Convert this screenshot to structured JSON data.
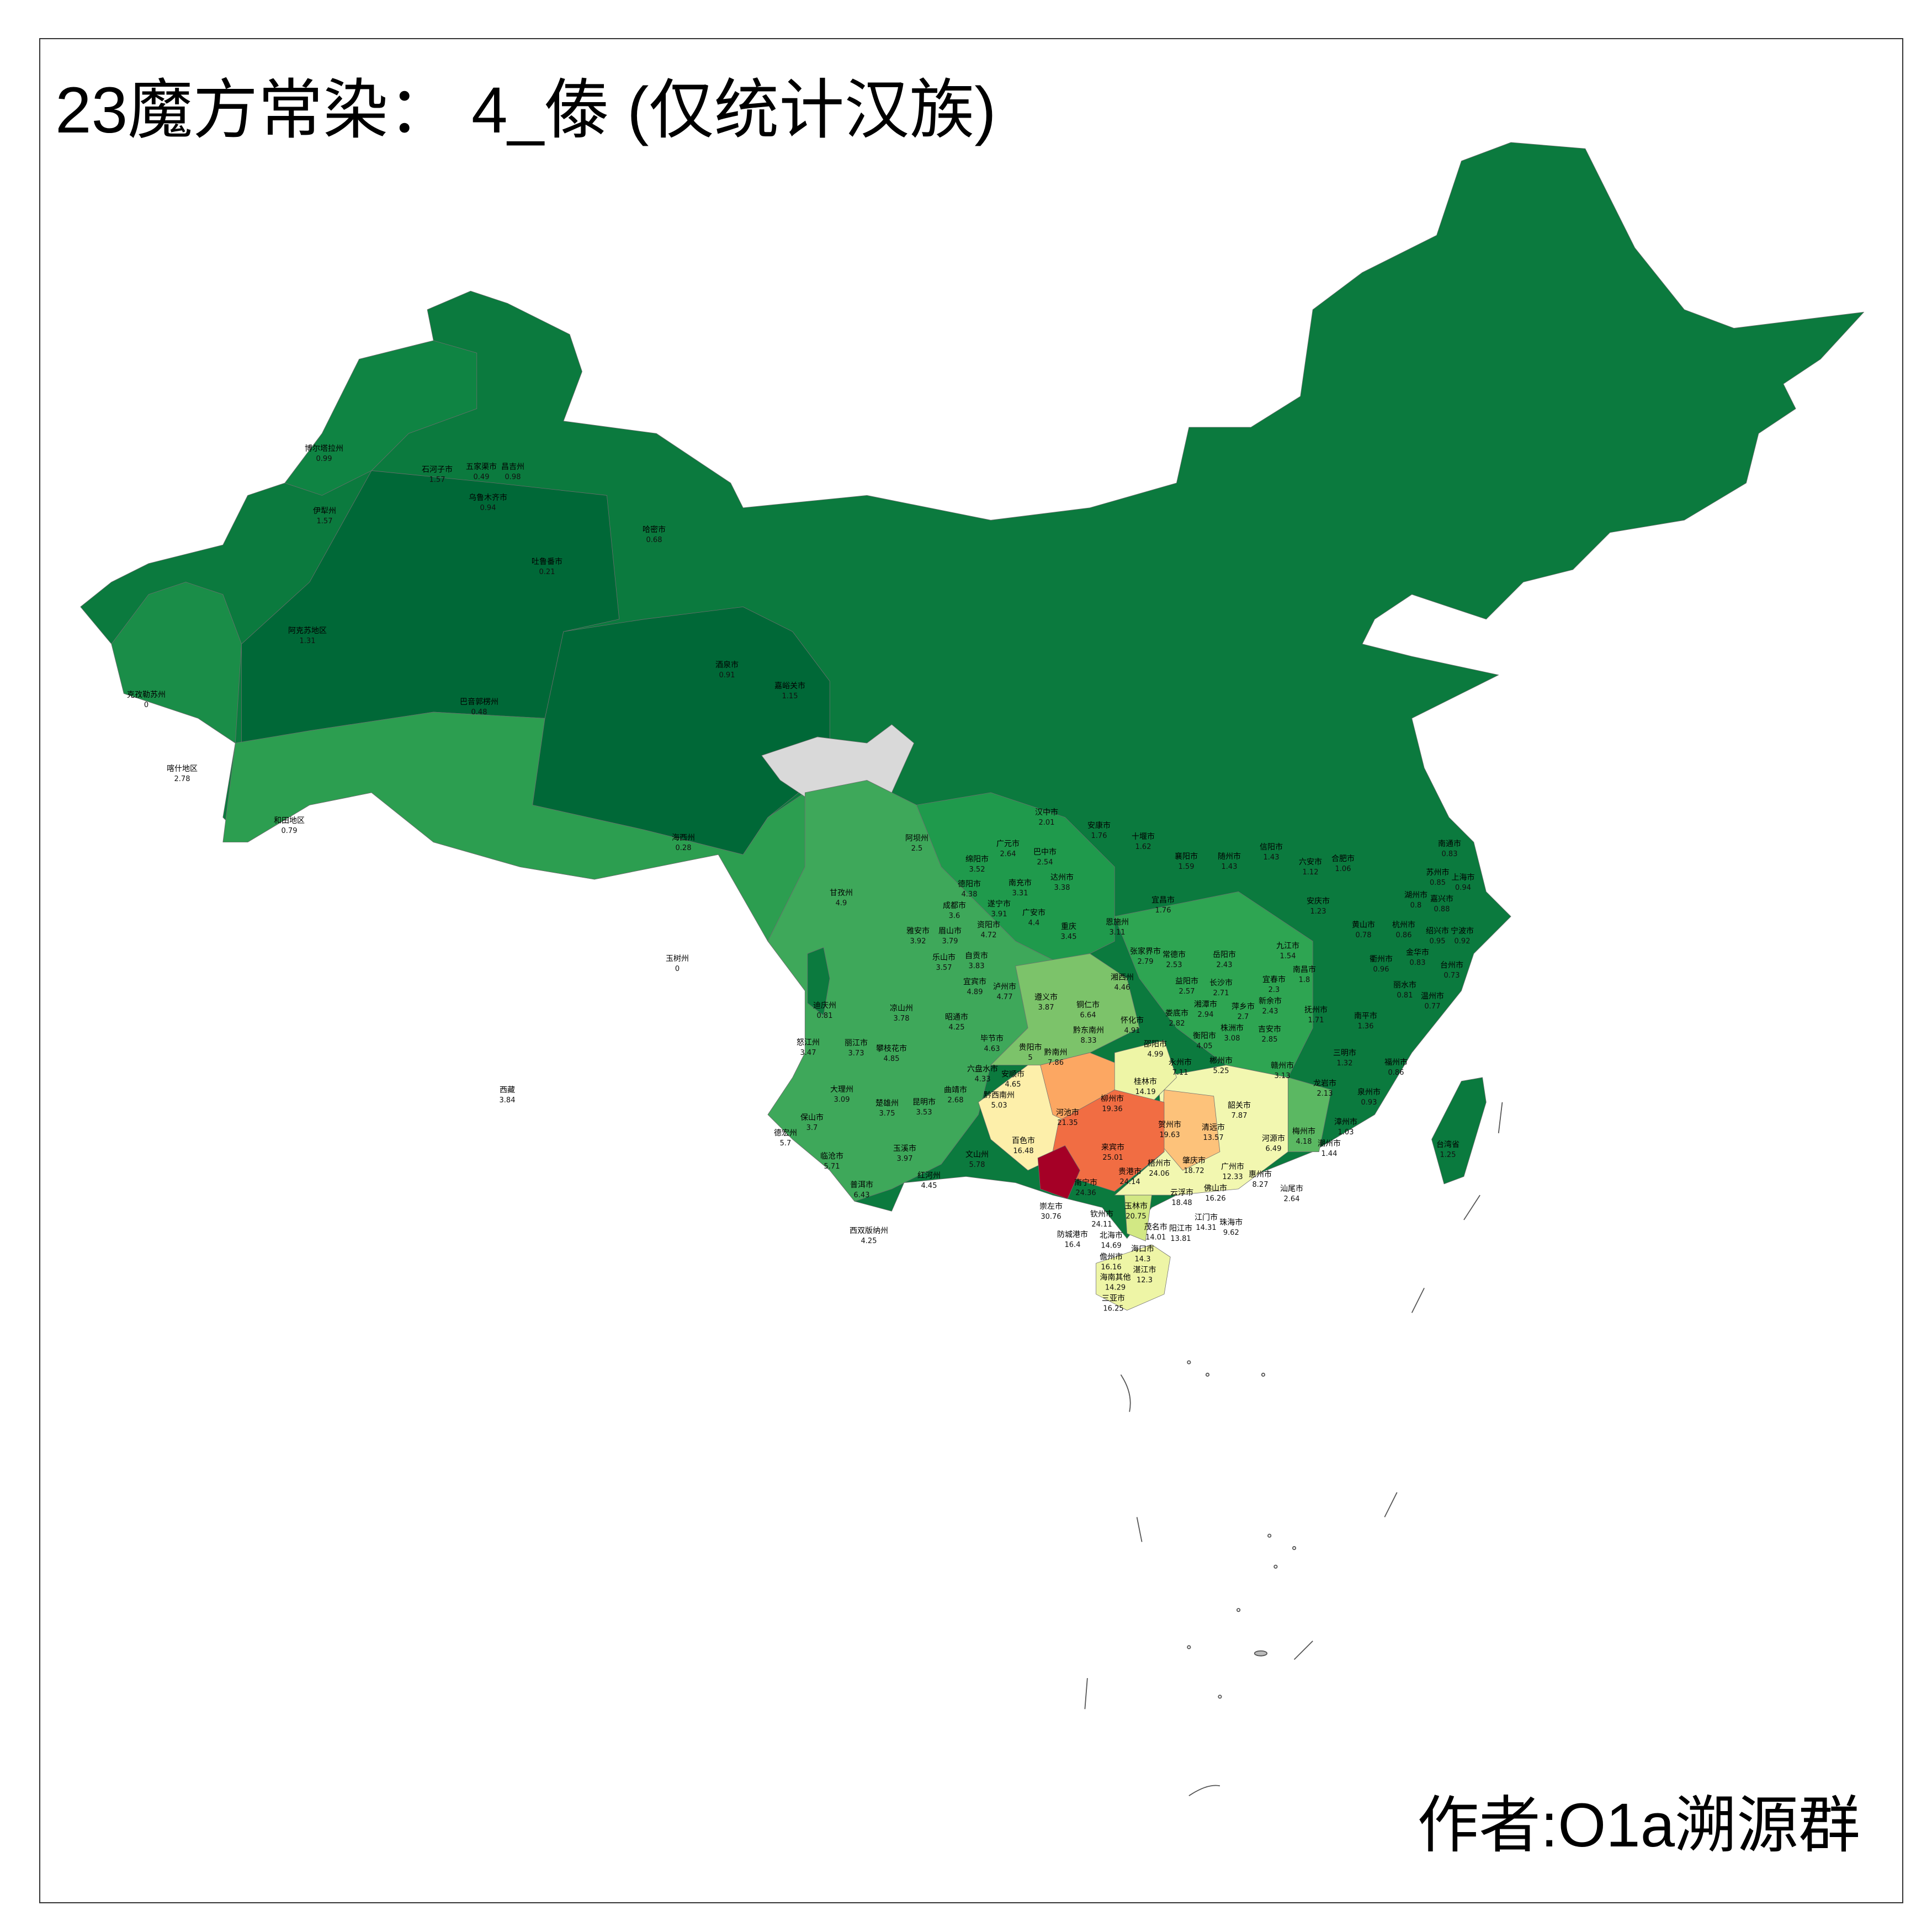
{
  "title": "23魔方常染： 4_傣 (仅统计汉族)",
  "author": "作者:O1a溯源群",
  "colors": {
    "frame": "#333333",
    "no_data": "#d9d9d9",
    "low": "#006837",
    "mid_low": "#1a9850",
    "mid": "#66bd63",
    "pale_green": "#d9ef8b",
    "pale_yellow": "#fee08b",
    "orange": "#fdae61",
    "red_orange": "#f46d43",
    "high": "#a50026"
  },
  "regions": [
    {
      "name": "崇左市",
      "value": "30.76"
    },
    {
      "name": "南宁市",
      "value": "24.36"
    },
    {
      "name": "来宾市",
      "value": "25.01"
    },
    {
      "name": "贵港市",
      "value": "24.14"
    },
    {
      "name": "梧州市",
      "value": "24.06"
    },
    {
      "name": "玉林市",
      "value": "20.75"
    },
    {
      "name": "钦州市",
      "value": "24.11"
    },
    {
      "name": "防城港市",
      "value": "16.4"
    },
    {
      "name": "北海市",
      "value": "14.69"
    },
    {
      "name": "百色市",
      "value": "16.48"
    },
    {
      "name": "河池市",
      "value": "21.35"
    },
    {
      "name": "柳州市",
      "value": "19.36"
    },
    {
      "name": "桂林市",
      "value": "14.19"
    },
    {
      "name": "贺州市",
      "value": "19.63"
    },
    {
      "name": "肇庆市",
      "value": "18.72"
    },
    {
      "name": "云浮市",
      "value": "18.48"
    },
    {
      "name": "清远市",
      "value": "13.57"
    },
    {
      "name": "广州市",
      "value": "12.33"
    },
    {
      "name": "佛山市",
      "value": "16.26"
    },
    {
      "name": "茂名市",
      "value": "14.01"
    },
    {
      "name": "阳江市",
      "value": "13.81"
    },
    {
      "name": "江门市",
      "value": "14.31"
    },
    {
      "name": "珠海市",
      "value": "9.62"
    },
    {
      "name": "湛江市",
      "value": "12.3"
    },
    {
      "name": "韶关市",
      "value": "7.87"
    },
    {
      "name": "河源市",
      "value": "6.49"
    },
    {
      "name": "梅州市",
      "value": "4.18"
    },
    {
      "name": "惠州市",
      "value": "8.27"
    },
    {
      "name": "汕尾市",
      "value": "2.64"
    },
    {
      "name": "黔南州",
      "value": "7.86"
    },
    {
      "name": "黔东南州",
      "value": "8.33"
    },
    {
      "name": "黔西南州",
      "value": "5.03"
    },
    {
      "name": "永州市",
      "value": "7.11"
    },
    {
      "name": "郴州市",
      "value": "5.25"
    },
    {
      "name": "赣州市",
      "value": "3.13"
    },
    {
      "name": "龙岩市",
      "value": "2.13"
    },
    {
      "name": "文山州",
      "value": "5.78"
    },
    {
      "name": "海口市",
      "value": "14.3"
    },
    {
      "name": "儋州市",
      "value": "16.16"
    },
    {
      "name": "海南其他",
      "value": "14.29"
    },
    {
      "name": "三亚市",
      "value": "16.25"
    },
    {
      "name": "阿坝州",
      "value": "2.5"
    },
    {
      "name": "甘孜州",
      "value": "4.9"
    },
    {
      "name": "绵阳市",
      "value": "3.52"
    },
    {
      "name": "广元市",
      "value": "2.64"
    },
    {
      "name": "巴中市",
      "value": "2.54"
    },
    {
      "name": "达州市",
      "value": "3.38"
    },
    {
      "name": "南充市",
      "value": "3.31"
    },
    {
      "name": "德阳市",
      "value": "4.38"
    },
    {
      "name": "成都市",
      "value": "3.6"
    },
    {
      "name": "遂宁市",
      "value": "3.91"
    },
    {
      "name": "广安市",
      "value": "4.4"
    },
    {
      "name": "重庆",
      "value": "3.45"
    },
    {
      "name": "雅安市",
      "value": "3.92"
    },
    {
      "name": "眉山市",
      "value": "3.79"
    },
    {
      "name": "资阳市",
      "value": "4.72"
    },
    {
      "name": "乐山市",
      "value": "3.57"
    },
    {
      "name": "自贡市",
      "value": "3.83"
    },
    {
      "name": "宜宾市",
      "value": "4.89"
    },
    {
      "name": "泸州市",
      "value": "4.77"
    },
    {
      "name": "遵义市",
      "value": "3.87"
    },
    {
      "name": "铜仁市",
      "value": "6.64"
    },
    {
      "name": "凉山州",
      "value": "3.78"
    },
    {
      "name": "迪庆州",
      "value": "0.81"
    },
    {
      "name": "怒江州",
      "value": "3.47"
    },
    {
      "name": "丽江市",
      "value": "3.73"
    },
    {
      "name": "攀枝花市",
      "value": "4.85"
    },
    {
      "name": "昭通市",
      "value": "4.25"
    },
    {
      "name": "毕节市",
      "value": "4.63"
    },
    {
      "name": "贵阳市",
      "value": "5"
    },
    {
      "name": "六盘水市",
      "value": "4.33"
    },
    {
      "name": "安顺市",
      "value": "4.65"
    },
    {
      "name": "曲靖市",
      "value": "2.68"
    },
    {
      "name": "大理州",
      "value": "3.09"
    },
    {
      "name": "楚雄州",
      "value": "3.75"
    },
    {
      "name": "昆明市",
      "value": "3.53"
    },
    {
      "name": "保山市",
      "value": "3.7"
    },
    {
      "name": "德宏州",
      "value": "5.7"
    },
    {
      "name": "临沧市",
      "value": "5.71"
    },
    {
      "name": "玉溪市",
      "value": "3.97"
    },
    {
      "name": "红河州",
      "value": "4.45"
    },
    {
      "name": "普洱市",
      "value": "6.43"
    },
    {
      "name": "西双版纳州",
      "value": "4.25"
    },
    {
      "name": "汉中市",
      "value": "2.01"
    },
    {
      "name": "安康市",
      "value": "1.76"
    },
    {
      "name": "十堰市",
      "value": "1.62"
    },
    {
      "name": "襄阳市",
      "value": "1.59"
    },
    {
      "name": "宜昌市",
      "value": "1.76"
    },
    {
      "name": "恩施州",
      "value": "3.11"
    },
    {
      "name": "张家界市",
      "value": "2.79"
    },
    {
      "name": "常德市",
      "value": "2.53"
    },
    {
      "name": "湘西州",
      "value": "4.46"
    },
    {
      "name": "益阳市",
      "value": "2.57"
    },
    {
      "name": "怀化市",
      "value": "4.91"
    },
    {
      "name": "娄底市",
      "value": "2.82"
    },
    {
      "name": "邵阳市",
      "value": "4.99"
    },
    {
      "name": "克孜勒苏州",
      "value": "0"
    },
    {
      "name": "喀什地区",
      "value": "2.78"
    },
    {
      "name": "和田地区",
      "value": "0.79"
    },
    {
      "name": "阿克苏地区",
      "value": "1.31"
    },
    {
      "name": "巴音郭楞州",
      "value": "0.48"
    },
    {
      "name": "吐鲁番市",
      "value": "0.21"
    },
    {
      "name": "哈密市",
      "value": "0.68"
    },
    {
      "name": "伊犁州",
      "value": "1.57"
    },
    {
      "name": "博尔塔拉州",
      "value": "0.99"
    },
    {
      "name": "石河子市",
      "value": "1.57"
    },
    {
      "name": "五家渠市",
      "value": "0.49"
    },
    {
      "name": "昌吉州",
      "value": "0.98"
    },
    {
      "name": "乌鲁木齐市",
      "value": "0.94"
    },
    {
      "name": "酒泉市",
      "value": "0.91"
    },
    {
      "name": "嘉峪关市",
      "value": "1.15"
    },
    {
      "name": "海西州",
      "value": "0.28"
    },
    {
      "name": "玉树州",
      "value": "0"
    },
    {
      "name": "西藏",
      "value": "3.84"
    },
    {
      "name": "信阳市",
      "value": "1.43"
    },
    {
      "name": "随州市",
      "value": "1.43"
    },
    {
      "name": "六安市",
      "value": "1.12"
    },
    {
      "name": "合肥市",
      "value": "1.06"
    },
    {
      "name": "安庆市",
      "value": "1.23"
    },
    {
      "name": "九江市",
      "value": "1.54"
    },
    {
      "name": "南昌市",
      "value": "1.8"
    },
    {
      "name": "长沙市",
      "value": "2.71"
    },
    {
      "name": "岳阳市",
      "value": "2.43"
    },
    {
      "name": "宜春市",
      "value": "2.3"
    },
    {
      "name": "吉安市",
      "value": "2.85"
    },
    {
      "name": "抚州市",
      "value": "1.71"
    },
    {
      "name": "南平市",
      "value": "1.36"
    },
    {
      "name": "三明市",
      "value": "1.32"
    },
    {
      "name": "福州市",
      "value": "0.86"
    },
    {
      "name": "泉州市",
      "value": "0.93"
    },
    {
      "name": "杭州市",
      "value": "0.86"
    },
    {
      "name": "宁波市",
      "value": "0.92"
    },
    {
      "name": "绍兴市",
      "value": "0.95"
    },
    {
      "name": "金华市",
      "value": "0.83"
    },
    {
      "name": "台州市",
      "value": "0.73"
    },
    {
      "name": "温州市",
      "value": "0.77"
    },
    {
      "name": "丽水市",
      "value": "0.81"
    },
    {
      "name": "衢州市",
      "value": "0.96"
    },
    {
      "name": "上海市",
      "value": "0.94"
    },
    {
      "name": "苏州市",
      "value": "0.85"
    },
    {
      "name": "湖州市",
      "value": "0.8"
    },
    {
      "name": "嘉兴市",
      "value": "0.88"
    },
    {
      "name": "南通市",
      "value": "0.83"
    },
    {
      "name": "黄山市",
      "value": "0.78"
    },
    {
      "name": "台湾省",
      "value": "1.25"
    },
    {
      "name": "株洲市",
      "value": "3.08"
    },
    {
      "name": "衡阳市",
      "value": "4.05"
    },
    {
      "name": "湘潭市",
      "value": "2.94"
    },
    {
      "name": "萍乡市",
      "value": "2.7"
    },
    {
      "name": "新余市",
      "value": "2.43"
    },
    {
      "name": "潮州市",
      "value": "1.44"
    },
    {
      "name": "漳州市",
      "value": "1.03"
    }
  ]
}
